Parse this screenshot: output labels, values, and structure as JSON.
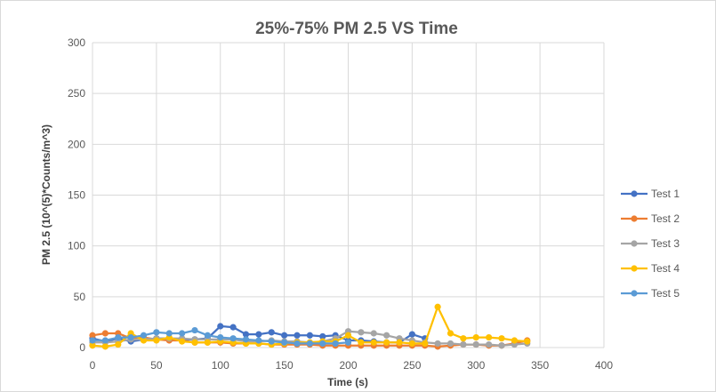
{
  "chart_data": {
    "type": "line",
    "title": "25%-75% PM 2.5 VS Time",
    "xlabel": "Time (s)",
    "ylabel": "PM 2.5 (10^(5)*Counts/m^3)",
    "xlim": [
      0,
      400
    ],
    "ylim": [
      0,
      300
    ],
    "xticks": [
      "0",
      "50",
      "100",
      "150",
      "200",
      "250",
      "300",
      "350",
      "400"
    ],
    "yticks": [
      "0",
      "50",
      "100",
      "150",
      "200",
      "250",
      "300"
    ],
    "grid": true,
    "legend_position": "right",
    "series": [
      {
        "name": "Test 1",
        "color": "#4472C4",
        "x": [
          0,
          10,
          20,
          30,
          40,
          50,
          60,
          70,
          80,
          90,
          100,
          110,
          120,
          130,
          140,
          150,
          160,
          170,
          180,
          190,
          200,
          210,
          220,
          230,
          240,
          250,
          260
        ],
        "y": [
          9,
          6,
          9,
          6,
          8,
          9,
          9,
          8,
          8,
          9,
          21,
          20,
          13,
          13,
          15,
          12,
          12,
          12,
          11,
          12,
          7,
          7,
          6,
          5,
          5,
          13,
          9
        ]
      },
      {
        "name": "Test 2",
        "color": "#ED7D31",
        "x": [
          0,
          10,
          20,
          30,
          40,
          50,
          60,
          70,
          80,
          90,
          100,
          110,
          120,
          130,
          140,
          150,
          160,
          170,
          180,
          190,
          200,
          210,
          220,
          230,
          240,
          250,
          260,
          270,
          280,
          290,
          300,
          310,
          320,
          330,
          340
        ],
        "y": [
          12,
          14,
          14,
          9,
          10,
          8,
          7,
          7,
          5,
          5,
          5,
          4,
          4,
          4,
          3,
          3,
          3,
          3,
          2,
          2,
          2,
          2,
          2,
          2,
          2,
          2,
          2,
          1,
          2,
          3,
          3,
          2,
          2,
          4,
          7
        ]
      },
      {
        "name": "Test 3",
        "color": "#A5A5A5",
        "x": [
          0,
          10,
          20,
          30,
          40,
          50,
          60,
          70,
          80,
          90,
          100,
          110,
          120,
          130,
          140,
          150,
          160,
          170,
          180,
          190,
          200,
          210,
          220,
          230,
          240,
          250,
          260,
          270,
          280,
          290,
          300,
          310,
          320,
          330,
          340
        ],
        "y": [
          5,
          5,
          6,
          8,
          8,
          9,
          9,
          9,
          8,
          8,
          8,
          8,
          6,
          6,
          7,
          6,
          6,
          5,
          6,
          9,
          16,
          15,
          14,
          12,
          9,
          7,
          5,
          4,
          4,
          3,
          3,
          3,
          2,
          3,
          4
        ]
      },
      {
        "name": "Test 4",
        "color": "#FFC000",
        "x": [
          0,
          10,
          20,
          30,
          40,
          50,
          60,
          70,
          80,
          90,
          100,
          110,
          120,
          130,
          140,
          150,
          160,
          170,
          180,
          190,
          200,
          210,
          220,
          230,
          240,
          250,
          260,
          270,
          280,
          290,
          300,
          310,
          320,
          330,
          340
        ],
        "y": [
          2,
          1,
          3,
          14,
          7,
          7,
          10,
          6,
          5,
          5,
          6,
          5,
          4,
          4,
          3,
          4,
          5,
          5,
          6,
          6,
          12,
          5,
          5,
          5,
          5,
          4,
          4,
          40,
          14,
          9,
          10,
          10,
          9,
          7,
          6
        ]
      },
      {
        "name": "Test 5",
        "color": "#5B9BD5",
        "x": [
          0,
          10,
          20,
          30,
          40,
          50,
          60,
          70,
          80,
          90,
          100,
          110,
          120,
          130,
          140,
          150,
          160,
          170,
          180,
          190,
          200
        ],
        "y": [
          7,
          7,
          10,
          10,
          12,
          15,
          14,
          14,
          17,
          12,
          10,
          9,
          8,
          7,
          6,
          5,
          4,
          4,
          4,
          4,
          5
        ]
      }
    ]
  }
}
